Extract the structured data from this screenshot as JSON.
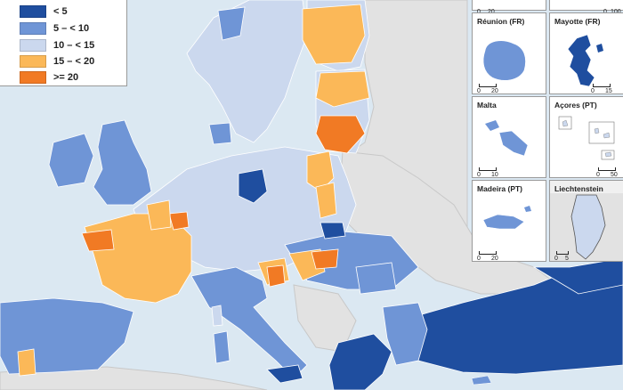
{
  "legend": {
    "items": [
      {
        "label": "< 5",
        "color": "#1f4e9f"
      },
      {
        "label": "5 – < 10",
        "color": "#6f95d6"
      },
      {
        "label": "10 – < 15",
        "color": "#cbd8ee"
      },
      {
        "label": "15 – < 20",
        "color": "#fbb858"
      },
      {
        "label": ">= 20",
        "color": "#f17a24"
      }
    ]
  },
  "colors": {
    "sea": "#dbe8f2",
    "non_eu_land": "#e2e2e2",
    "border": "#ffffff"
  },
  "insets": [
    {
      "title": "",
      "scale_zero": "0",
      "scale_max": "20"
    },
    {
      "title": "",
      "scale_zero": "0",
      "scale_max": "100"
    },
    {
      "title": "Réunion (FR)",
      "scale_zero": "0",
      "scale_max": "20"
    },
    {
      "title": "Mayotte (FR)",
      "scale_zero": "0",
      "scale_max": "15"
    },
    {
      "title": "Malta",
      "scale_zero": "0",
      "scale_max": "10"
    },
    {
      "title": "Açores (PT)",
      "scale_zero": "0",
      "scale_max": "50"
    },
    {
      "title": "Madeira (PT)",
      "scale_zero": "0",
      "scale_max": "20"
    },
    {
      "title": "Liechtenstein",
      "scale_zero": "0",
      "scale_max": "5"
    }
  ]
}
